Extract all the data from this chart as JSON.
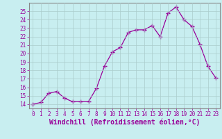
{
  "x": [
    0,
    1,
    2,
    3,
    4,
    5,
    6,
    7,
    8,
    9,
    10,
    11,
    12,
    13,
    14,
    15,
    16,
    17,
    18,
    19,
    20,
    21,
    22,
    23
  ],
  "y": [
    14.0,
    14.2,
    15.3,
    15.5,
    14.7,
    14.3,
    14.3,
    14.3,
    15.9,
    18.5,
    20.2,
    20.7,
    22.5,
    22.8,
    22.8,
    23.3,
    22.0,
    24.8,
    25.5,
    24.0,
    23.2,
    21.1,
    18.5,
    17.1
  ],
  "line_color": "#990099",
  "marker": "+",
  "marker_size": 4,
  "bg_color": "#c8eef0",
  "grid_color": "#aacccc",
  "xlabel": "Windchill (Refroidissement éolien,°C)",
  "xlim": [
    -0.5,
    23.5
  ],
  "ylim": [
    13.5,
    26.0
  ],
  "yticks": [
    14,
    15,
    16,
    17,
    18,
    19,
    20,
    21,
    22,
    23,
    24,
    25
  ],
  "xticks": [
    0,
    1,
    2,
    3,
    4,
    5,
    6,
    7,
    8,
    9,
    10,
    11,
    12,
    13,
    14,
    15,
    16,
    17,
    18,
    19,
    20,
    21,
    22,
    23
  ],
  "tick_label_fontsize": 5.5,
  "xlabel_fontsize": 7.0,
  "spine_color": "#888888"
}
